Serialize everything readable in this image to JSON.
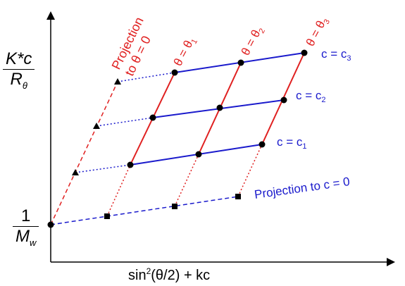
{
  "diagram": {
    "type": "zimm-plot",
    "y_axis_label": {
      "numerator_main": "K*c",
      "denominator_main": "R",
      "denominator_sub": "θ"
    },
    "intercept_label": {
      "numerator": "1",
      "denominator_main": "M",
      "denominator_sub": "w"
    },
    "x_axis_label": {
      "text": "sin",
      "sup": "2",
      "rest": "(θ/2) + kc"
    },
    "angle_labels": {
      "theta_1": "θ = θ",
      "theta_1_sub": "1",
      "theta_2": "θ = θ",
      "theta_2_sub": "2",
      "theta_3": "θ = θ",
      "theta_3_sub": "3"
    },
    "concentration_labels": {
      "c_1": "c = c",
      "c_1_sub": "1",
      "c_2": "c = c",
      "c_2_sub": "2",
      "c_3": "c = c",
      "c_3_sub": "3"
    },
    "projection_theta_label": {
      "line1": "Projection",
      "line2": "to θ = 0"
    },
    "projection_c_label": "Projection to c = 0",
    "colors": {
      "concentration_lines": "#1a1acc",
      "angle_lines": "#e02020",
      "axes": "#000000",
      "points": "#000000"
    }
  }
}
